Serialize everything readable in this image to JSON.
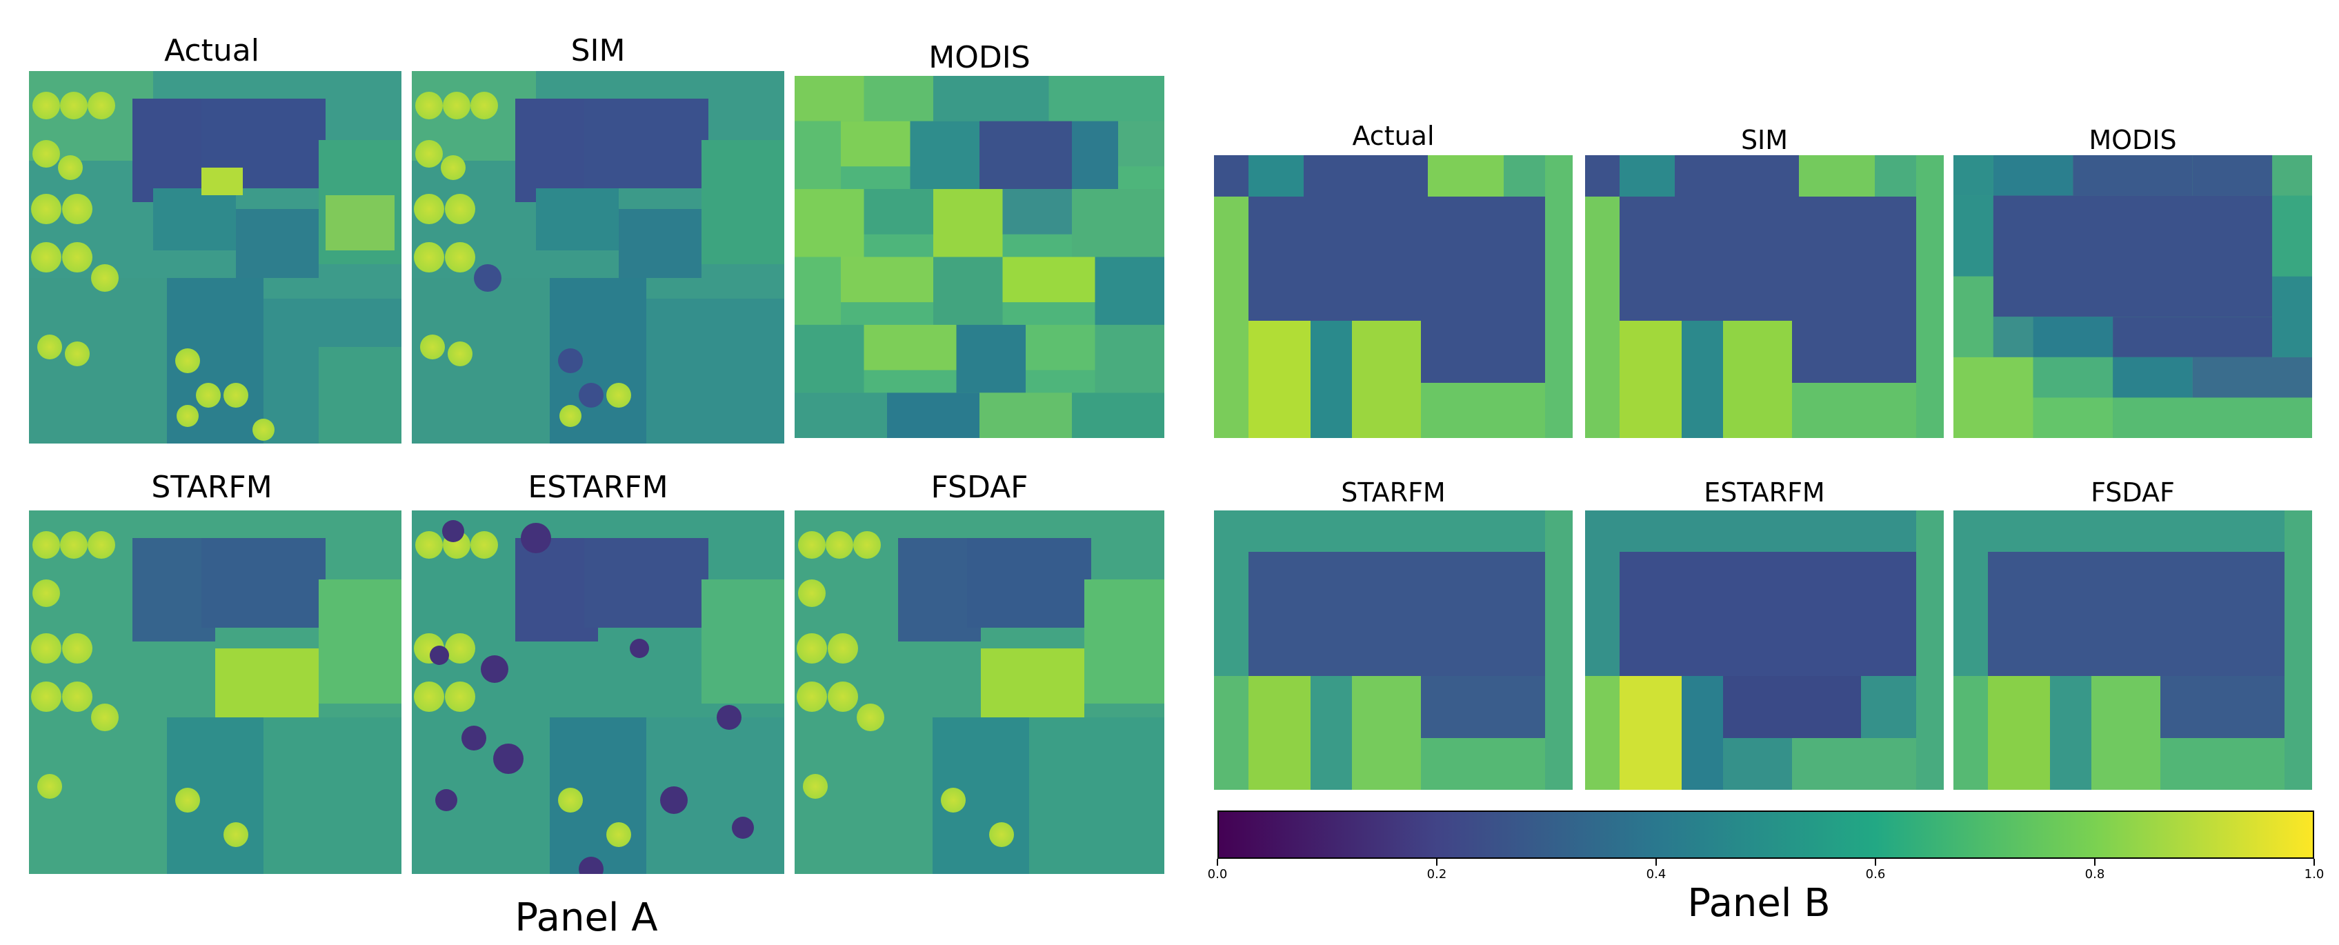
{
  "colors": {
    "vmin": "#440154",
    "v20": "#414487",
    "v40": "#2a788e",
    "v60": "#22a884",
    "v80": "#7ad151",
    "vmax": "#fde725"
  },
  "panelA": {
    "label": "Panel A",
    "images": [
      {
        "title": "Actual",
        "icon": "satellite-ndvi-image"
      },
      {
        "title": "SIM",
        "icon": "satellite-ndvi-image"
      },
      {
        "title": "MODIS",
        "icon": "coarse-pixel-image"
      },
      {
        "title": "STARFM",
        "icon": "satellite-ndvi-image"
      },
      {
        "title": "ESTARFM",
        "icon": "satellite-ndvi-image"
      },
      {
        "title": "FSDAF",
        "icon": "satellite-ndvi-image"
      }
    ]
  },
  "panelB": {
    "label": "Panel B",
    "images": [
      {
        "title": "Actual"
      },
      {
        "title": "SIM"
      },
      {
        "title": "MODIS"
      },
      {
        "title": "STARFM"
      },
      {
        "title": "ESTARFM"
      },
      {
        "title": "FSDAF"
      }
    ]
  },
  "colorbar": {
    "ticks": [
      "0.0",
      "0.2",
      "0.4",
      "0.6",
      "0.8",
      "1.0"
    ],
    "tick_values": [
      0.0,
      0.2,
      0.4,
      0.6,
      0.8,
      1.0
    ],
    "range": [
      0.0,
      1.0
    ]
  }
}
